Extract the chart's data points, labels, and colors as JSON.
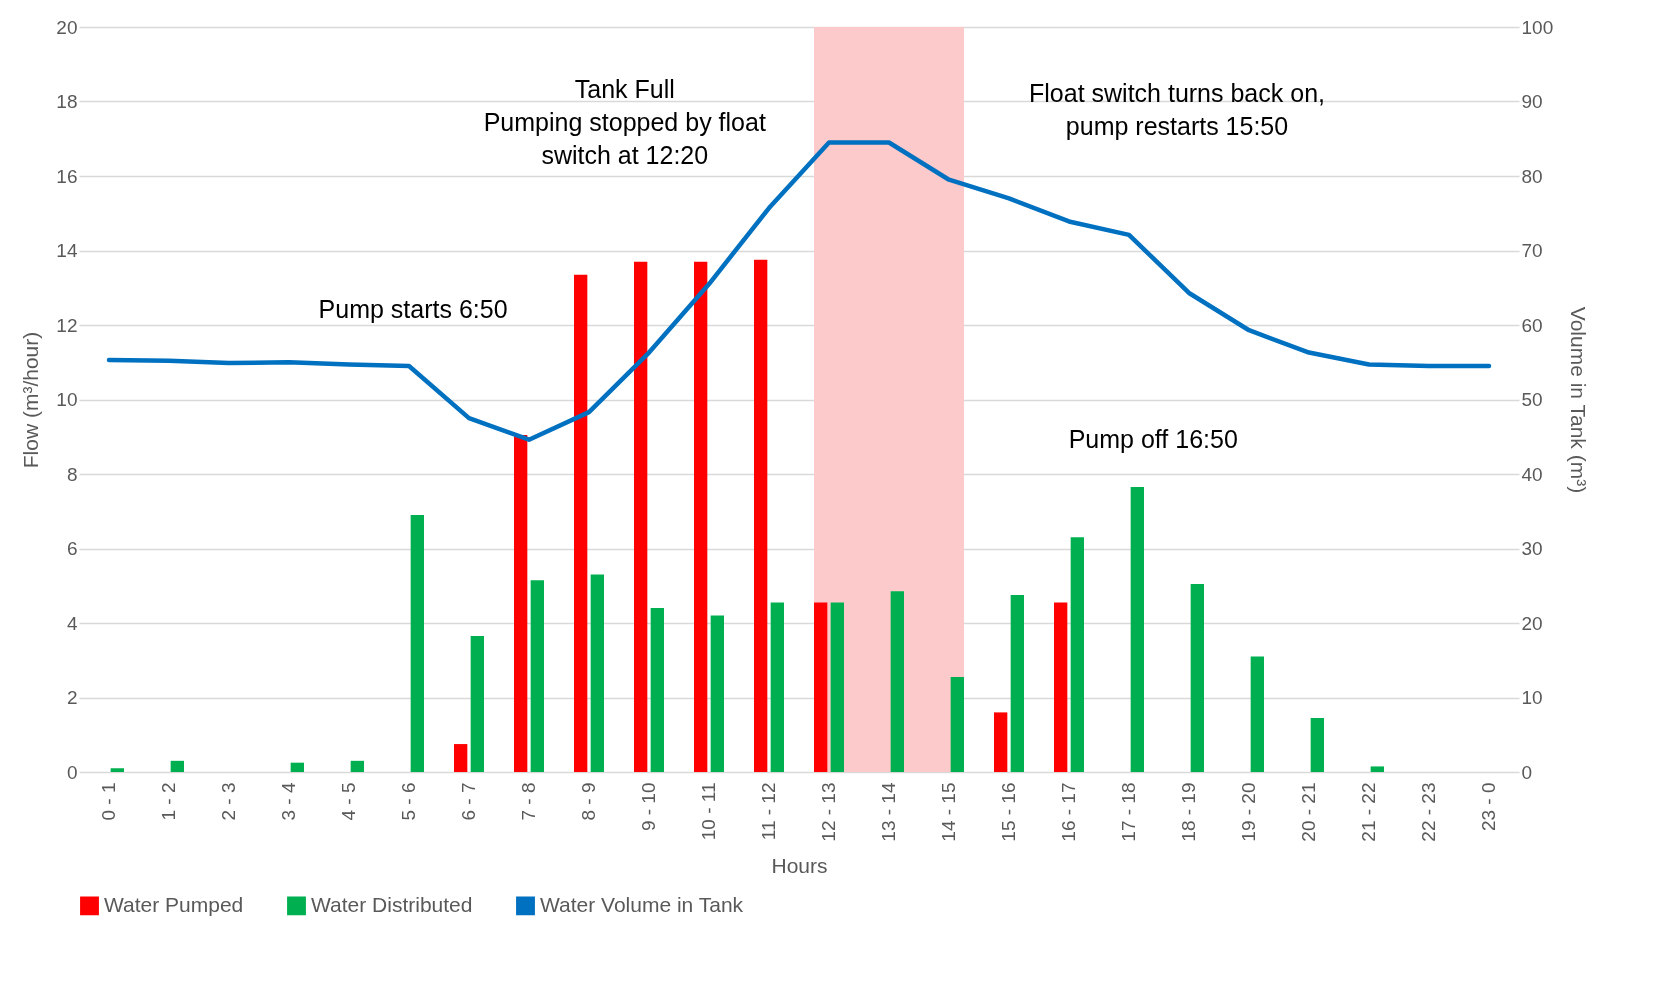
{
  "chart_data": {
    "type": "bar",
    "categories": [
      "0 - 1",
      "1 - 2",
      "2 - 3",
      "3 - 4",
      "4 - 5",
      "5 - 6",
      "6 - 7",
      "7 - 8",
      "8 - 9",
      "9 - 10",
      "10 - 11",
      "11 - 12",
      "12 - 13",
      "13 - 14",
      "14 - 15",
      "15 - 16",
      "16 - 17",
      "17 - 18",
      "18 - 19",
      "19 - 20",
      "20 - 21",
      "21 - 22",
      "22 - 23",
      "23 - 0"
    ],
    "series": [
      {
        "name": "Water Pumped",
        "color": "#ff0000",
        "values": [
          null,
          null,
          null,
          null,
          null,
          null,
          0.75,
          9.05,
          13.35,
          13.7,
          13.7,
          13.75,
          4.55,
          null,
          null,
          1.6,
          4.55,
          null,
          null,
          null,
          null,
          null,
          null,
          null
        ]
      },
      {
        "name": "Water Distributed",
        "color": "#00b050",
        "values": [
          0.1,
          0.3,
          null,
          0.25,
          0.3,
          6.9,
          3.65,
          5.15,
          5.3,
          4.4,
          4.2,
          4.55,
          4.55,
          4.85,
          2.55,
          4.75,
          6.3,
          7.65,
          5.05,
          3.1,
          1.45,
          0.15,
          null,
          null
        ]
      },
      {
        "name": "Water Volume in Tank",
        "type": "line",
        "axis": "y2",
        "color": "#0070c0",
        "values": [
          55.3,
          55.2,
          54.9,
          55.0,
          54.7,
          54.5,
          47.5,
          44.6,
          48.3,
          56.3,
          65.5,
          75.7,
          84.5,
          84.5,
          79.5,
          77.0,
          73.9,
          72.1,
          64.3,
          59.3,
          56.3,
          54.7,
          54.5,
          54.5
        ]
      }
    ],
    "xlabel": "Hours",
    "ylabel": "Flow  (m³/hour)",
    "y2label": "Volume in Tank (m³)",
    "ylim": [
      0,
      20
    ],
    "yticks": [
      0,
      2,
      4,
      6,
      8,
      10,
      12,
      14,
      16,
      18,
      20
    ],
    "y2lim": [
      0,
      100
    ],
    "y2ticks": [
      0,
      10,
      20,
      30,
      40,
      50,
      60,
      70,
      80,
      90,
      100
    ],
    "bands": [
      {
        "axis": "x",
        "from": "12 - 13",
        "to": "14 - 15",
        "color": "#fccaca"
      }
    ],
    "annotations": [
      "Pump starts 6:50",
      "Tank Full\nPumping stopped by float\nswitch at 12:20",
      "Float switch turns back on,\npump restarts 15:50",
      "Pump off 16:50"
    ],
    "grid": "y",
    "legend": "bottom",
    "marker": "none",
    "line_style": "solid"
  }
}
